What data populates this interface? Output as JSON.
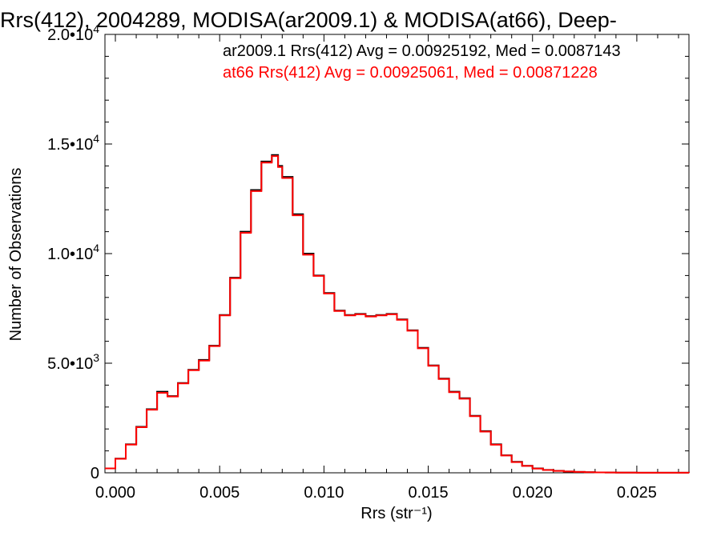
{
  "chart_data": {
    "type": "line",
    "title": "Rrs(412), 2004289, MODISA(ar2009.1) & MODISA(at66), Deep-",
    "xlabel": "Rrs (str⁻¹)",
    "ylabel": "Number of Observations",
    "xlim": [
      -0.0005,
      0.0275
    ],
    "ylim": [
      0,
      20000
    ],
    "x_ticks": [
      0.0,
      0.005,
      0.01,
      0.015,
      0.02,
      0.025
    ],
    "x_tick_labels": [
      "0.000",
      "0.005",
      "0.010",
      "0.015",
      "0.020",
      "0.025"
    ],
    "y_ticks": [
      {
        "value": 0,
        "mantissa": "0",
        "exp": ""
      },
      {
        "value": 5000,
        "mantissa": "5.0•10",
        "exp": "3"
      },
      {
        "value": 10000,
        "mantissa": "1.0•10",
        "exp": "4"
      },
      {
        "value": 15000,
        "mantissa": "1.5•10",
        "exp": "4"
      },
      {
        "value": 20000,
        "mantissa": "2.0•10",
        "exp": "4"
      }
    ],
    "annotations": [
      {
        "text": "ar2009.1 Rrs(412) Avg = 0.00925192, Med = 0.0087143",
        "color": "#000000"
      },
      {
        "text": "at66 Rrs(412) Avg = 0.00925061, Med = 0.00871228",
        "color": "#ff0000"
      }
    ],
    "grid": false,
    "series": [
      {
        "color": "#000000",
        "x": [
          -0.0005,
          0.0,
          0.0005,
          0.001,
          0.0015,
          0.002,
          0.0025,
          0.003,
          0.0035,
          0.004,
          0.0045,
          0.005,
          0.0055,
          0.006,
          0.0065,
          0.007,
          0.0075,
          0.0078,
          0.008,
          0.0085,
          0.009,
          0.0095,
          0.01,
          0.0105,
          0.011,
          0.0115,
          0.012,
          0.0125,
          0.013,
          0.0135,
          0.014,
          0.0145,
          0.015,
          0.0155,
          0.016,
          0.0165,
          0.017,
          0.0175,
          0.018,
          0.0185,
          0.019,
          0.0195,
          0.02,
          0.0205,
          0.021,
          0.0215,
          0.022,
          0.0225,
          0.023,
          0.0235,
          0.024,
          0.0245,
          0.025,
          0.0255,
          0.026,
          0.0265,
          0.027,
          0.0275
        ],
        "y": [
          200,
          650,
          1300,
          2100,
          2900,
          3700,
          3500,
          4100,
          4700,
          5150,
          5800,
          7200,
          8900,
          11000,
          12900,
          14200,
          14500,
          14000,
          13500,
          11800,
          10000,
          9000,
          8200,
          7400,
          7200,
          7250,
          7150,
          7200,
          7250,
          7000,
          6500,
          5700,
          4900,
          4300,
          3700,
          3400,
          2600,
          1900,
          1300,
          800,
          500,
          320,
          200,
          130,
          90,
          60,
          40,
          30,
          20,
          15,
          10,
          8,
          5,
          4,
          3,
          2,
          2,
          1
        ]
      },
      {
        "color": "#ff0000",
        "x": [
          -0.0005,
          0.0,
          0.0005,
          0.001,
          0.0015,
          0.002,
          0.0025,
          0.003,
          0.0035,
          0.004,
          0.0045,
          0.005,
          0.0055,
          0.006,
          0.0065,
          0.007,
          0.0075,
          0.0078,
          0.008,
          0.0085,
          0.009,
          0.0095,
          0.01,
          0.0105,
          0.011,
          0.0115,
          0.012,
          0.0125,
          0.013,
          0.0135,
          0.014,
          0.0145,
          0.015,
          0.0155,
          0.016,
          0.0165,
          0.017,
          0.0175,
          0.018,
          0.0185,
          0.019,
          0.0195,
          0.02,
          0.0205,
          0.021,
          0.0215,
          0.022,
          0.0225,
          0.023,
          0.0235,
          0.024,
          0.0245,
          0.025,
          0.0255,
          0.026,
          0.0265,
          0.027,
          0.0275
        ],
        "y": [
          200,
          640,
          1290,
          2080,
          2880,
          3650,
          3480,
          4080,
          4680,
          5120,
          5780,
          7180,
          8880,
          10950,
          12850,
          14150,
          14450,
          13950,
          13450,
          11750,
          9950,
          8980,
          8180,
          7380,
          7180,
          7230,
          7130,
          7180,
          7230,
          6980,
          6480,
          5680,
          4880,
          4280,
          3680,
          3380,
          2580,
          1880,
          1280,
          790,
          490,
          315,
          195,
          128,
          88,
          58,
          39,
          29,
          19,
          14,
          9,
          7,
          5,
          4,
          3,
          2,
          2,
          1
        ]
      }
    ]
  }
}
